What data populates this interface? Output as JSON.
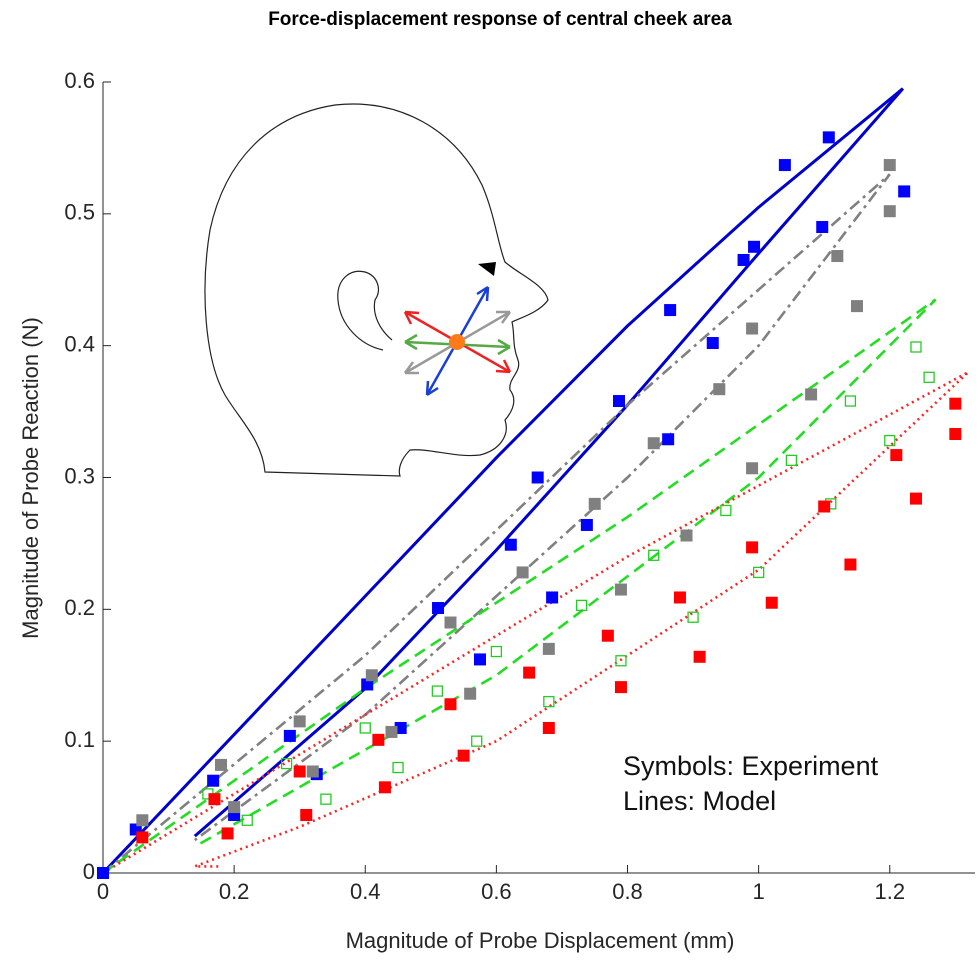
{
  "chart_data": {
    "type": "scatter",
    "title": "Force-displacement response of central cheek area",
    "xlabel": "Magnitude of Probe Displacement (mm)",
    "ylabel": "Magnitude of Probe Reaction (N)",
    "annotations": [
      "Symbols: Experiment",
      "Lines: Model"
    ],
    "xlim": [
      0,
      1.33
    ],
    "ylim": [
      0,
      0.6
    ],
    "xticks": [
      0,
      0.2,
      0.4,
      0.6,
      0.8,
      1,
      1.2
    ],
    "yticks": [
      0,
      0.1,
      0.2,
      0.3,
      0.4,
      0.5,
      0.6
    ],
    "series": [
      {
        "mode": "markers",
        "marker": "filled",
        "color": "#0000ff",
        "x": [
          0,
          0.05,
          0.168,
          0.2,
          0.285,
          0.326,
          0.403,
          0.454,
          0.511,
          0.575,
          0.622,
          0.663,
          0.685,
          0.738,
          0.787,
          0.862,
          0.865,
          0.93,
          0.977,
          0.993,
          1.04,
          1.097,
          1.107,
          1.222
        ],
        "values": [
          0,
          0.033,
          0.07,
          0.044,
          0.104,
          0.075,
          0.143,
          0.11,
          0.201,
          0.162,
          0.249,
          0.3,
          0.209,
          0.264,
          0.358,
          0.329,
          0.427,
          0.402,
          0.465,
          0.475,
          0.537,
          0.49,
          0.558,
          0.517
        ]
      },
      {
        "mode": "markers",
        "marker": "filled",
        "color": "#808080",
        "x": [
          0.06,
          0.18,
          0.2,
          0.3,
          0.32,
          0.41,
          0.44,
          0.53,
          0.56,
          0.64,
          0.68,
          0.75,
          0.79,
          0.84,
          0.89,
          0.94,
          0.99,
          0.99,
          1.08,
          1.12,
          1.15,
          1.2,
          1.2
        ],
        "values": [
          0.04,
          0.082,
          0.05,
          0.115,
          0.077,
          0.15,
          0.107,
          0.19,
          0.136,
          0.228,
          0.17,
          0.28,
          0.215,
          0.326,
          0.256,
          0.367,
          0.307,
          0.413,
          0.363,
          0.468,
          0.43,
          0.537,
          0.502
        ]
      },
      {
        "mode": "markers",
        "marker": "open",
        "color": "#22cc22",
        "x": [
          0.16,
          0.22,
          0.28,
          0.34,
          0.4,
          0.45,
          0.51,
          0.57,
          0.6,
          0.68,
          0.73,
          0.79,
          0.84,
          0.9,
          0.95,
          1.0,
          1.05,
          1.11,
          1.14,
          1.2,
          1.24,
          1.26
        ],
        "values": [
          0.06,
          0.04,
          0.083,
          0.056,
          0.11,
          0.08,
          0.138,
          0.1,
          0.168,
          0.13,
          0.203,
          0.161,
          0.241,
          0.194,
          0.275,
          0.228,
          0.313,
          0.28,
          0.358,
          0.328,
          0.399,
          0.376
        ]
      },
      {
        "mode": "markers",
        "marker": "filled",
        "color": "#ff0000",
        "x": [
          0.06,
          0.17,
          0.19,
          0.3,
          0.31,
          0.42,
          0.43,
          0.53,
          0.55,
          0.65,
          0.68,
          0.77,
          0.79,
          0.88,
          0.91,
          0.99,
          1.02,
          1.1,
          1.14,
          1.21,
          1.24,
          1.3,
          1.3
        ],
        "values": [
          0.027,
          0.056,
          0.03,
          0.077,
          0.044,
          0.101,
          0.065,
          0.128,
          0.089,
          0.152,
          0.11,
          0.18,
          0.141,
          0.209,
          0.164,
          0.247,
          0.205,
          0.278,
          0.234,
          0.317,
          0.284,
          0.356,
          0.333
        ]
      },
      {
        "mode": "line",
        "dash": "solid",
        "color": "#0000cc",
        "x": [
          0,
          0.2,
          0.4,
          0.6,
          0.8,
          1.0,
          1.22,
          1.0,
          0.8,
          0.6,
          0.4,
          0.14
        ],
        "values": [
          0,
          0.105,
          0.21,
          0.315,
          0.415,
          0.505,
          0.595,
          0.47,
          0.355,
          0.245,
          0.14,
          0.028
        ]
      },
      {
        "mode": "line",
        "dash": "dashdot",
        "color": "#808080",
        "x": [
          0,
          0.4,
          0.8,
          1.2,
          1.0,
          0.8,
          0.4,
          0.14
        ],
        "values": [
          0,
          0.165,
          0.355,
          0.53,
          0.4,
          0.3,
          0.12,
          0.025
        ]
      },
      {
        "mode": "line",
        "dash": "dashed",
        "color": "#22dd22",
        "x": [
          0,
          0.4,
          0.8,
          1.27,
          1.0,
          0.6,
          0.14
        ],
        "values": [
          0,
          0.14,
          0.27,
          0.435,
          0.3,
          0.15,
          0.02
        ]
      },
      {
        "mode": "line",
        "dash": "dotted",
        "color": "#ff2222",
        "x": [
          0,
          0.4,
          0.8,
          1.32,
          1.0,
          0.6,
          0.3,
          0.14,
          0.18
        ],
        "values": [
          0,
          0.12,
          0.24,
          0.38,
          0.23,
          0.1,
          0.035,
          0.005,
          0.005
        ]
      }
    ]
  }
}
